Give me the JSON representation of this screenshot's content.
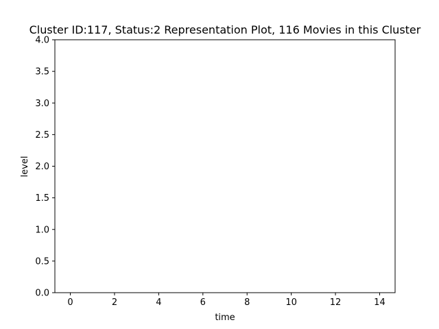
{
  "chart_data": {
    "type": "line",
    "title": "Cluster ID:117, Status:2 Representation Plot, 116 Movies in this Cluster",
    "xlabel": "time",
    "ylabel": "level",
    "xlim": [
      -0.7,
      14.7
    ],
    "ylim": [
      0.0,
      4.0
    ],
    "x_ticks": [
      0,
      2,
      4,
      6,
      8,
      10,
      12,
      14
    ],
    "x_tick_labels": [
      "0",
      "2",
      "4",
      "6",
      "8",
      "10",
      "12",
      "14"
    ],
    "y_ticks": [
      0.0,
      0.5,
      1.0,
      1.5,
      2.0,
      2.5,
      3.0,
      3.5,
      4.0
    ],
    "y_tick_labels": [
      "0.0",
      "0.5",
      "1.0",
      "1.5",
      "2.0",
      "2.5",
      "3.0",
      "3.5",
      "4.0"
    ],
    "grid": false,
    "series": [],
    "colors": {
      "axis": "#000000",
      "background": "#ffffff"
    }
  }
}
